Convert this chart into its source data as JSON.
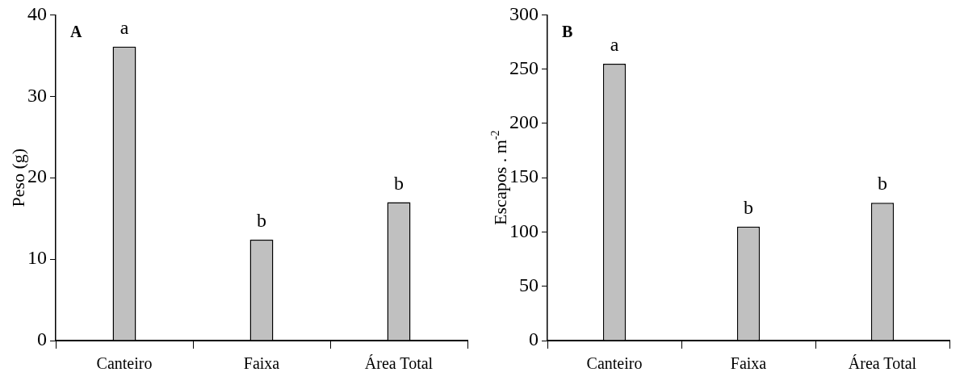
{
  "chart_data": [
    {
      "type": "bar",
      "categories": [
        "Canteiro",
        "Faixa",
        "Área Total"
      ],
      "values": [
        36.1,
        12.4,
        17.0
      ],
      "color": "#c0c0c0",
      "ylabel": "Peso (g)",
      "ylim": [
        0,
        40
      ],
      "yticks": [
        0,
        10,
        20,
        30,
        40
      ],
      "grid": false,
      "legend": false,
      "annotations": [
        "A",
        {
          "text": "a",
          "x": "Canteiro",
          "y": 36.1
        },
        {
          "text": "b",
          "x": "Faixa",
          "y": 12.4
        },
        {
          "text": "b",
          "x": "Área Total",
          "y": 17.0
        }
      ]
    },
    {
      "type": "bar",
      "categories": [
        "Canteiro",
        "Faixa",
        "Área Total"
      ],
      "values": [
        255,
        105,
        127
      ],
      "color": "#c0c0c0",
      "ylabel": "Escapos . m$^{-2}$",
      "ylim": [
        0,
        300
      ],
      "yticks": [
        0,
        50,
        100,
        150,
        200,
        250,
        300
      ],
      "grid": false,
      "legend": false,
      "annotations": [
        "B",
        {
          "text": "a",
          "x": "Canteiro",
          "y": 255
        },
        {
          "text": "b",
          "x": "Faixa",
          "y": 105
        },
        {
          "text": "b",
          "x": "Área Total",
          "y": 127
        }
      ]
    }
  ]
}
